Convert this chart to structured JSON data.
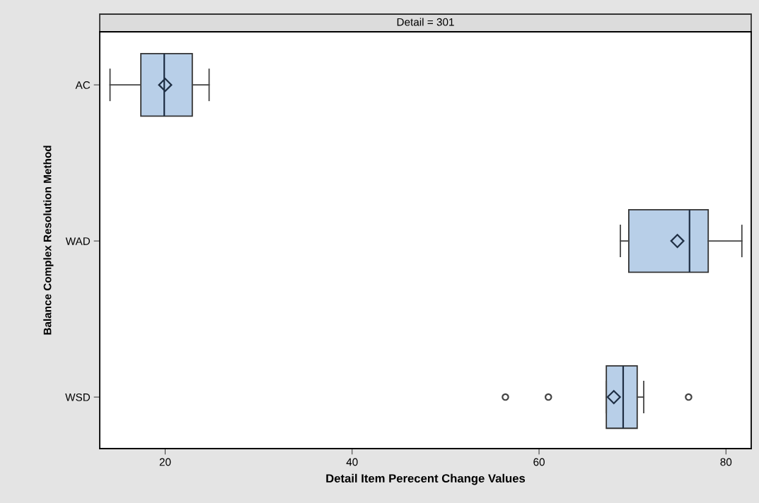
{
  "chart_data": {
    "type": "box",
    "orientation": "horizontal",
    "title": "Detail = 301",
    "xlabel": "Detail Item Perecent Change Values",
    "ylabel": "Balance Complex Resolution Method",
    "categories": [
      "AC",
      "WAD",
      "WSD"
    ],
    "color": "#b8cfe8",
    "xlim": [
      13,
      82.7
    ],
    "xticks": [
      20,
      40,
      60,
      80
    ],
    "grid": false,
    "boxes": [
      {
        "low": 14.1,
        "q1": 17.4,
        "median": 19.9,
        "q3": 22.9,
        "high": 24.7,
        "mean": 20.0
      },
      {
        "low": 68.7,
        "q1": 69.6,
        "median": 76.1,
        "q3": 78.1,
        "high": 81.7,
        "mean": 74.8
      },
      {
        "low": 67.2,
        "q1": 67.2,
        "median": 69.0,
        "q3": 70.5,
        "high": 71.2,
        "mean": 68.0,
        "outliers": [
          56.4,
          61.0,
          76.0
        ]
      }
    ]
  }
}
